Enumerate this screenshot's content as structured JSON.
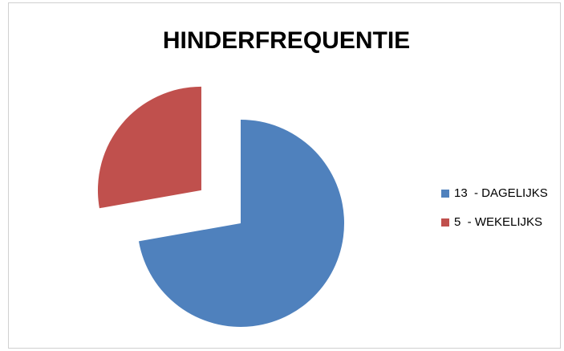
{
  "chart_data": {
    "type": "pie",
    "title": "HINDERFREQUENTIE",
    "categories": [
      "13  - DAGELIJKS",
      "5  - WEKELIJKS"
    ],
    "values": [
      13,
      5
    ],
    "colors": [
      "#4f81bd",
      "#c0504d"
    ],
    "legend": "right"
  }
}
